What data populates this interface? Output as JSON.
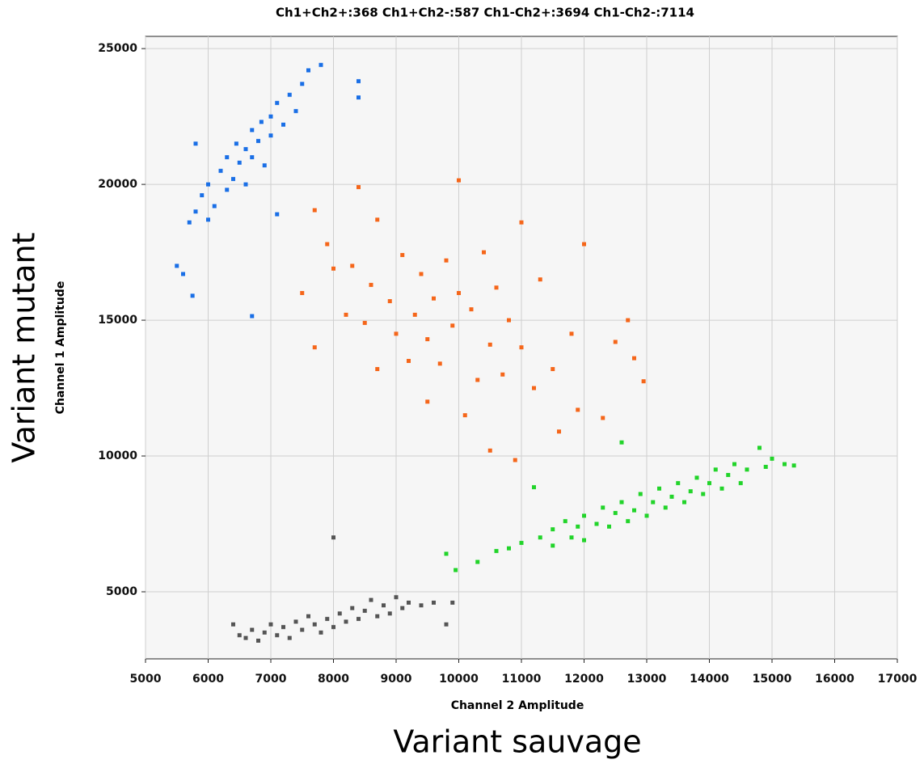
{
  "chart_data": {
    "type": "scatter",
    "title": "Ch1+Ch2+:368  Ch1+Ch2-:587  Ch1-Ch2+:3694  Ch1-Ch2-:7114",
    "x_label": "Channel 2 Amplitude",
    "y_label": "Channel 1 Amplitude",
    "annotations": [
      "Variant mutant",
      "Variant sauvage"
    ],
    "xlim": [
      5000,
      17000
    ],
    "ylim": [
      2530,
      25450
    ],
    "xticks": [
      5000,
      6000,
      7000,
      8000,
      9000,
      10000,
      11000,
      12000,
      13000,
      14000,
      15000,
      16000,
      17000
    ],
    "yticks": [
      5000,
      10000,
      15000,
      20000,
      25000
    ],
    "grid": true,
    "series": [
      {
        "color": "#1a6fe6",
        "x": [
          5500,
          5600,
          5750,
          5700,
          5800,
          5900,
          6000,
          6000,
          6100,
          6200,
          6300,
          6300,
          6400,
          6450,
          6500,
          6600,
          6600,
          6700,
          6700,
          6800,
          6850,
          6900,
          7000,
          7000,
          7100,
          7200,
          7300,
          7400,
          7500,
          7600,
          7800,
          6700,
          7100,
          8400,
          8400,
          5800
        ],
        "values": [
          17000,
          16700,
          15900,
          18600,
          19000,
          19600,
          18700,
          20000,
          19200,
          20500,
          19800,
          21000,
          20200,
          21500,
          20800,
          21300,
          20000,
          22000,
          21000,
          21600,
          22300,
          20700,
          22500,
          21800,
          23000,
          22200,
          23300,
          22700,
          23700,
          24200,
          24400,
          15150,
          18900,
          23800,
          23200,
          21500
        ]
      },
      {
        "color": "#f5661a",
        "x": [
          7500,
          7700,
          7700,
          7900,
          8000,
          8200,
          8300,
          8400,
          8500,
          8600,
          8700,
          8700,
          8900,
          9000,
          9100,
          9200,
          9300,
          9400,
          9500,
          9500,
          9600,
          9700,
          9800,
          9900,
          10000,
          10000,
          10100,
          10200,
          10300,
          10400,
          10500,
          10500,
          10600,
          10700,
          10800,
          10900,
          11000,
          11000,
          11200,
          11300,
          11500,
          11600,
          11800,
          11900,
          12000,
          12300,
          12500,
          12700,
          12800,
          12950
        ],
        "values": [
          16000,
          19050,
          14000,
          17800,
          16900,
          15200,
          17000,
          19900,
          14900,
          16300,
          18700,
          13200,
          15700,
          14500,
          17400,
          13500,
          15200,
          16700,
          12000,
          14300,
          15800,
          13400,
          17200,
          14800,
          20150,
          16000,
          11500,
          15400,
          12800,
          17500,
          14100,
          10200,
          16200,
          13000,
          15000,
          9850,
          18600,
          14000,
          12500,
          16500,
          13200,
          10900,
          14500,
          11700,
          17800,
          11400,
          14200,
          15000,
          13600,
          12750
        ]
      },
      {
        "color": "#22d42a",
        "x": [
          10600,
          10800,
          11000,
          11200,
          11300,
          11500,
          11500,
          11700,
          11800,
          11900,
          12000,
          12000,
          12200,
          12300,
          12400,
          12500,
          12600,
          12600,
          12700,
          12800,
          12900,
          13000,
          13100,
          13200,
          13300,
          13400,
          13500,
          13600,
          13700,
          13800,
          13900,
          14000,
          14100,
          14200,
          14300,
          14400,
          14500,
          14600,
          14800,
          14900,
          15000,
          15200,
          15350,
          9950,
          9800,
          10300
        ],
        "values": [
          6500,
          6600,
          6800,
          8850,
          7000,
          7300,
          6700,
          7600,
          7000,
          7400,
          7800,
          6900,
          7500,
          8100,
          7400,
          7900,
          10500,
          8300,
          7600,
          8000,
          8600,
          7800,
          8300,
          8800,
          8100,
          8500,
          9000,
          8300,
          8700,
          9200,
          8600,
          9000,
          9500,
          8800,
          9300,
          9700,
          9000,
          9500,
          10300,
          9600,
          9900,
          9700,
          9650,
          5800,
          6400,
          6100
        ]
      },
      {
        "color": "#555555",
        "x": [
          6400,
          6500,
          6600,
          6700,
          6800,
          6900,
          7000,
          7100,
          7200,
          7300,
          7400,
          7500,
          7600,
          7700,
          7800,
          7900,
          8000,
          8000,
          8100,
          8200,
          8300,
          8400,
          8500,
          8600,
          8700,
          8800,
          8900,
          9000,
          9100,
          9200,
          9400,
          9600,
          9800,
          9900
        ],
        "values": [
          3800,
          3400,
          3300,
          3600,
          3200,
          3500,
          3800,
          3400,
          3700,
          3300,
          3900,
          3600,
          4100,
          3800,
          3500,
          4000,
          7000,
          3700,
          4200,
          3900,
          4400,
          4000,
          4300,
          4700,
          4100,
          4500,
          4200,
          4800,
          4400,
          4600,
          4500,
          4600,
          3800,
          4600
        ]
      }
    ]
  }
}
